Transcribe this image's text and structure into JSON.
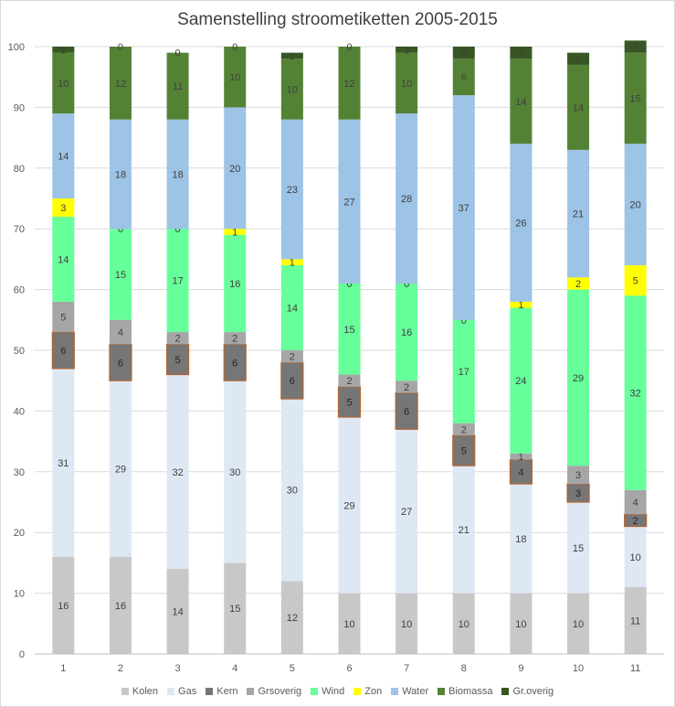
{
  "chart_data": {
    "type": "bar",
    "stacked": true,
    "title": "Samenstelling stroometiketten 2005-2015",
    "categories": [
      "1",
      "2",
      "3",
      "4",
      "5",
      "6",
      "7",
      "8",
      "9",
      "10",
      "11"
    ],
    "ylim": [
      0,
      100
    ],
    "yticks": [
      0,
      10,
      20,
      30,
      40,
      50,
      60,
      70,
      80,
      90,
      100
    ],
    "grid": true,
    "legend": "bottom",
    "series": [
      {
        "name": "Kolen",
        "color": "#c8c8c8",
        "label_color": "#404040",
        "values": [
          16,
          16,
          14,
          15,
          12,
          10,
          10,
          10,
          10,
          10,
          11
        ]
      },
      {
        "name": "Gas",
        "color": "#dde8f4",
        "label_color": "#404040",
        "values": [
          31,
          29,
          32,
          30,
          30,
          29,
          27,
          21,
          18,
          15,
          10
        ]
      },
      {
        "name": "Kern",
        "color": "#767676",
        "border": "#b5652e",
        "label_color": "#262626",
        "values": [
          6,
          6,
          5,
          6,
          6,
          5,
          6,
          5,
          4,
          3,
          2
        ]
      },
      {
        "name": "Grsoverig",
        "color": "#a6a6a6",
        "label_color": "#404040",
        "values": [
          5,
          4,
          2,
          2,
          2,
          2,
          2,
          2,
          1,
          3,
          4
        ]
      },
      {
        "name": "Wind",
        "color": "#66ff99",
        "label_color": "#404040",
        "values": [
          14,
          15,
          17,
          16,
          14,
          15,
          16,
          17,
          24,
          29,
          32
        ]
      },
      {
        "name": "Zon",
        "color": "#ffff00",
        "label_color": "#404040",
        "values": [
          3,
          0,
          0,
          1,
          1,
          0,
          0,
          0,
          1,
          2,
          5
        ]
      },
      {
        "name": "Water",
        "color": "#9dc3e6",
        "label_color": "#404040",
        "values": [
          14,
          18,
          18,
          20,
          23,
          27,
          28,
          37,
          26,
          21,
          20
        ]
      },
      {
        "name": "Biomassa",
        "color": "#548235",
        "label_color": "#404040",
        "values": [
          10,
          12,
          11,
          10,
          10,
          12,
          10,
          6,
          14,
          14,
          15
        ]
      },
      {
        "name": "Gr.overig",
        "color": "#375623",
        "label_color": "#404040",
        "values": [
          1,
          0,
          0,
          0,
          1,
          0,
          1,
          2,
          2,
          2,
          2
        ]
      }
    ]
  }
}
